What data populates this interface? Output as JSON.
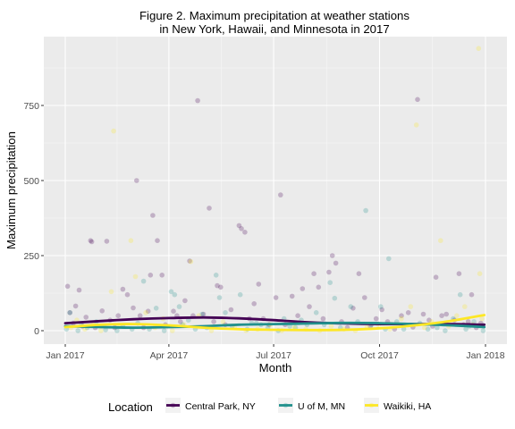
{
  "chart_data": {
    "type": "scatter",
    "title_line1": "Figure 2. Maximum precipitation at weather stations",
    "title_line2": "in New York, Hawaii, and Minnesota in 2017",
    "xlabel": "Month",
    "ylabel": "Maximum precipitation",
    "xlim": [
      "2017-01-01",
      "2018-01-01"
    ],
    "ylim": [
      -40,
      975
    ],
    "x_ticks": [
      {
        "date": "2017-01-01",
        "label": "Jan 2017"
      },
      {
        "date": "2017-04-01",
        "label": "Apr 2017"
      },
      {
        "date": "2017-07-01",
        "label": "Jul 2017"
      },
      {
        "date": "2017-10-01",
        "label": "Oct 2017"
      },
      {
        "date": "2018-01-01",
        "label": "Jan 2018"
      }
    ],
    "y_ticks": [
      0,
      250,
      500,
      750
    ],
    "grid": true,
    "legend": {
      "title": "Location",
      "position": "bottom"
    },
    "series": [
      {
        "name": "Central Park, NY",
        "color": "#440154",
        "points": [
          [
            "2017-01-03",
            148
          ],
          [
            "2017-01-05",
            60
          ],
          [
            "2017-01-08",
            25
          ],
          [
            "2017-01-10",
            82
          ],
          [
            "2017-01-13",
            135
          ],
          [
            "2017-01-16",
            15
          ],
          [
            "2017-01-19",
            45
          ],
          [
            "2017-01-23",
            300
          ],
          [
            "2017-01-24",
            296
          ],
          [
            "2017-01-27",
            10
          ],
          [
            "2017-02-02",
            66
          ],
          [
            "2017-02-06",
            298
          ],
          [
            "2017-02-09",
            35
          ],
          [
            "2017-02-13",
            10
          ],
          [
            "2017-02-16",
            50
          ],
          [
            "2017-02-20",
            138
          ],
          [
            "2017-02-24",
            120
          ],
          [
            "2017-03-01",
            76
          ],
          [
            "2017-03-04",
            500
          ],
          [
            "2017-03-07",
            50
          ],
          [
            "2017-03-10",
            10
          ],
          [
            "2017-03-14",
            65
          ],
          [
            "2017-03-16",
            185
          ],
          [
            "2017-03-18",
            384
          ],
          [
            "2017-03-22",
            300
          ],
          [
            "2017-03-26",
            185
          ],
          [
            "2017-03-29",
            20
          ],
          [
            "2017-04-05",
            65
          ],
          [
            "2017-04-08",
            50
          ],
          [
            "2017-04-11",
            30
          ],
          [
            "2017-04-15",
            100
          ],
          [
            "2017-04-19",
            232
          ],
          [
            "2017-04-22",
            50
          ],
          [
            "2017-04-26",
            766
          ],
          [
            "2017-05-01",
            55
          ],
          [
            "2017-05-06",
            408
          ],
          [
            "2017-05-10",
            30
          ],
          [
            "2017-05-13",
            150
          ],
          [
            "2017-05-16",
            145
          ],
          [
            "2017-05-20",
            20
          ],
          [
            "2017-05-25",
            70
          ],
          [
            "2017-06-01",
            350
          ],
          [
            "2017-06-03",
            340
          ],
          [
            "2017-06-06",
            328
          ],
          [
            "2017-06-10",
            40
          ],
          [
            "2017-06-14",
            90
          ],
          [
            "2017-06-18",
            155
          ],
          [
            "2017-06-22",
            40
          ],
          [
            "2017-06-27",
            20
          ],
          [
            "2017-07-03",
            110
          ],
          [
            "2017-07-07",
            452
          ],
          [
            "2017-07-11",
            20
          ],
          [
            "2017-07-17",
            115
          ],
          [
            "2017-07-22",
            50
          ],
          [
            "2017-07-26",
            140
          ],
          [
            "2017-08-01",
            80
          ],
          [
            "2017-08-05",
            190
          ],
          [
            "2017-08-09",
            145
          ],
          [
            "2017-08-13",
            40
          ],
          [
            "2017-08-18",
            195
          ],
          [
            "2017-08-21",
            250
          ],
          [
            "2017-08-24",
            225
          ],
          [
            "2017-08-29",
            30
          ],
          [
            "2017-09-03",
            10
          ],
          [
            "2017-09-08",
            75
          ],
          [
            "2017-09-13",
            190
          ],
          [
            "2017-09-18",
            110
          ],
          [
            "2017-09-23",
            15
          ],
          [
            "2017-09-28",
            40
          ],
          [
            "2017-10-03",
            70
          ],
          [
            "2017-10-08",
            30
          ],
          [
            "2017-10-14",
            5
          ],
          [
            "2017-10-20",
            50
          ],
          [
            "2017-10-26",
            60
          ],
          [
            "2017-10-30",
            12
          ],
          [
            "2017-11-03",
            770
          ],
          [
            "2017-11-08",
            55
          ],
          [
            "2017-11-13",
            35
          ],
          [
            "2017-11-16",
            15
          ],
          [
            "2017-11-19",
            178
          ],
          [
            "2017-11-24",
            50
          ],
          [
            "2017-11-28",
            55
          ],
          [
            "2017-12-05",
            35
          ],
          [
            "2017-12-09",
            190
          ],
          [
            "2017-12-13",
            20
          ],
          [
            "2017-12-17",
            30
          ],
          [
            "2017-12-20",
            120
          ],
          [
            "2017-12-24",
            10
          ],
          [
            "2017-12-28",
            25
          ]
        ],
        "smooth": [
          [
            "2017-01-01",
            25
          ],
          [
            "2017-02-01",
            32
          ],
          [
            "2017-03-01",
            38
          ],
          [
            "2017-04-01",
            42
          ],
          [
            "2017-05-01",
            44
          ],
          [
            "2017-06-01",
            41
          ],
          [
            "2017-07-01",
            35
          ],
          [
            "2017-08-01",
            28
          ],
          [
            "2017-09-01",
            24
          ],
          [
            "2017-10-01",
            22
          ],
          [
            "2017-11-01",
            22
          ],
          [
            "2017-12-01",
            22
          ],
          [
            "2017-12-31",
            20
          ]
        ]
      },
      {
        "name": "U of M, MN",
        "color": "#21908C",
        "points": [
          [
            "2017-01-02",
            5
          ],
          [
            "2017-01-05",
            60
          ],
          [
            "2017-01-12",
            0
          ],
          [
            "2017-01-15",
            20
          ],
          [
            "2017-01-20",
            10
          ],
          [
            "2017-01-28",
            30
          ],
          [
            "2017-02-05",
            3
          ],
          [
            "2017-02-15",
            0
          ],
          [
            "2017-02-20",
            15
          ],
          [
            "2017-02-28",
            5
          ],
          [
            "2017-03-05",
            25
          ],
          [
            "2017-03-10",
            165
          ],
          [
            "2017-03-15",
            5
          ],
          [
            "2017-03-21",
            75
          ],
          [
            "2017-03-28",
            0
          ],
          [
            "2017-04-03",
            130
          ],
          [
            "2017-04-06",
            120
          ],
          [
            "2017-04-10",
            80
          ],
          [
            "2017-04-13",
            20
          ],
          [
            "2017-04-18",
            35
          ],
          [
            "2017-04-24",
            5
          ],
          [
            "2017-04-30",
            55
          ],
          [
            "2017-05-04",
            10
          ],
          [
            "2017-05-12",
            185
          ],
          [
            "2017-05-15",
            110
          ],
          [
            "2017-05-20",
            60
          ],
          [
            "2017-05-26",
            15
          ],
          [
            "2017-06-02",
            120
          ],
          [
            "2017-06-08",
            5
          ],
          [
            "2017-06-12",
            25
          ],
          [
            "2017-06-16",
            25
          ],
          [
            "2017-06-20",
            20
          ],
          [
            "2017-06-26",
            10
          ],
          [
            "2017-07-05",
            0
          ],
          [
            "2017-07-10",
            40
          ],
          [
            "2017-07-15",
            15
          ],
          [
            "2017-07-20",
            10
          ],
          [
            "2017-07-25",
            35
          ],
          [
            "2017-07-30",
            20
          ],
          [
            "2017-08-07",
            60
          ],
          [
            "2017-08-14",
            20
          ],
          [
            "2017-08-19",
            160
          ],
          [
            "2017-08-23",
            108
          ],
          [
            "2017-08-28",
            10
          ],
          [
            "2017-09-06",
            80
          ],
          [
            "2017-09-12",
            30
          ],
          [
            "2017-09-19",
            400
          ],
          [
            "2017-09-24",
            20
          ],
          [
            "2017-10-02",
            80
          ],
          [
            "2017-10-06",
            5
          ],
          [
            "2017-10-09",
            240
          ],
          [
            "2017-10-16",
            30
          ],
          [
            "2017-10-22",
            5
          ],
          [
            "2017-11-05",
            25
          ],
          [
            "2017-11-12",
            5
          ],
          [
            "2017-11-20",
            10
          ],
          [
            "2017-11-27",
            0
          ],
          [
            "2017-12-04",
            40
          ],
          [
            "2017-12-10",
            120
          ],
          [
            "2017-12-15",
            5
          ],
          [
            "2017-12-18",
            15
          ],
          [
            "2017-12-22",
            30
          ],
          [
            "2017-12-30",
            0
          ]
        ],
        "smooth": [
          [
            "2017-01-01",
            15
          ],
          [
            "2017-02-01",
            12
          ],
          [
            "2017-03-01",
            10
          ],
          [
            "2017-04-01",
            12
          ],
          [
            "2017-05-01",
            15
          ],
          [
            "2017-06-01",
            20
          ],
          [
            "2017-07-01",
            22
          ],
          [
            "2017-08-01",
            24
          ],
          [
            "2017-09-01",
            26
          ],
          [
            "2017-10-01",
            25
          ],
          [
            "2017-11-01",
            22
          ],
          [
            "2017-12-01",
            18
          ],
          [
            "2017-12-31",
            12
          ]
        ]
      },
      {
        "name": "Waikiki, HA",
        "color": "#FDE725",
        "points": [
          [
            "2017-01-06",
            10
          ],
          [
            "2017-01-11",
            35
          ],
          [
            "2017-01-18",
            5
          ],
          [
            "2017-01-25",
            20
          ],
          [
            "2017-02-01",
            0
          ],
          [
            "2017-02-10",
            130
          ],
          [
            "2017-02-12",
            665
          ],
          [
            "2017-02-17",
            15
          ],
          [
            "2017-02-27",
            300
          ],
          [
            "2017-03-03",
            180
          ],
          [
            "2017-03-12",
            60
          ],
          [
            "2017-03-20",
            10
          ],
          [
            "2017-03-27",
            40
          ],
          [
            "2017-04-04",
            0
          ],
          [
            "2017-04-14",
            20
          ],
          [
            "2017-04-20",
            230
          ],
          [
            "2017-04-27",
            50
          ],
          [
            "2017-05-08",
            0
          ],
          [
            "2017-05-18",
            30
          ],
          [
            "2017-05-28",
            10
          ],
          [
            "2017-06-07",
            0
          ],
          [
            "2017-06-17",
            5
          ],
          [
            "2017-06-28",
            20
          ],
          [
            "2017-07-08",
            0
          ],
          [
            "2017-07-19",
            10
          ],
          [
            "2017-07-29",
            5
          ],
          [
            "2017-08-10",
            0
          ],
          [
            "2017-08-20",
            15
          ],
          [
            "2017-08-31",
            5
          ],
          [
            "2017-09-10",
            0
          ],
          [
            "2017-09-20",
            10
          ],
          [
            "2017-09-30",
            20
          ],
          [
            "2017-10-10",
            5
          ],
          [
            "2017-10-20",
            40
          ],
          [
            "2017-10-28",
            80
          ],
          [
            "2017-11-02",
            685
          ],
          [
            "2017-11-09",
            10
          ],
          [
            "2017-11-15",
            30
          ],
          [
            "2017-11-23",
            300
          ],
          [
            "2017-11-30",
            15
          ],
          [
            "2017-12-07",
            50
          ],
          [
            "2017-12-14",
            80
          ],
          [
            "2017-12-21",
            20
          ],
          [
            "2017-12-26",
            940
          ],
          [
            "2017-12-27",
            190
          ],
          [
            "2017-12-29",
            40
          ]
        ],
        "smooth": [
          [
            "2017-01-01",
            12
          ],
          [
            "2017-02-01",
            20
          ],
          [
            "2017-03-01",
            22
          ],
          [
            "2017-04-01",
            18
          ],
          [
            "2017-05-01",
            10
          ],
          [
            "2017-06-01",
            5
          ],
          [
            "2017-07-01",
            3
          ],
          [
            "2017-08-01",
            2
          ],
          [
            "2017-09-01",
            3
          ],
          [
            "2017-10-01",
            8
          ],
          [
            "2017-11-01",
            18
          ],
          [
            "2017-12-01",
            32
          ],
          [
            "2017-12-31",
            52
          ]
        ]
      }
    ]
  }
}
